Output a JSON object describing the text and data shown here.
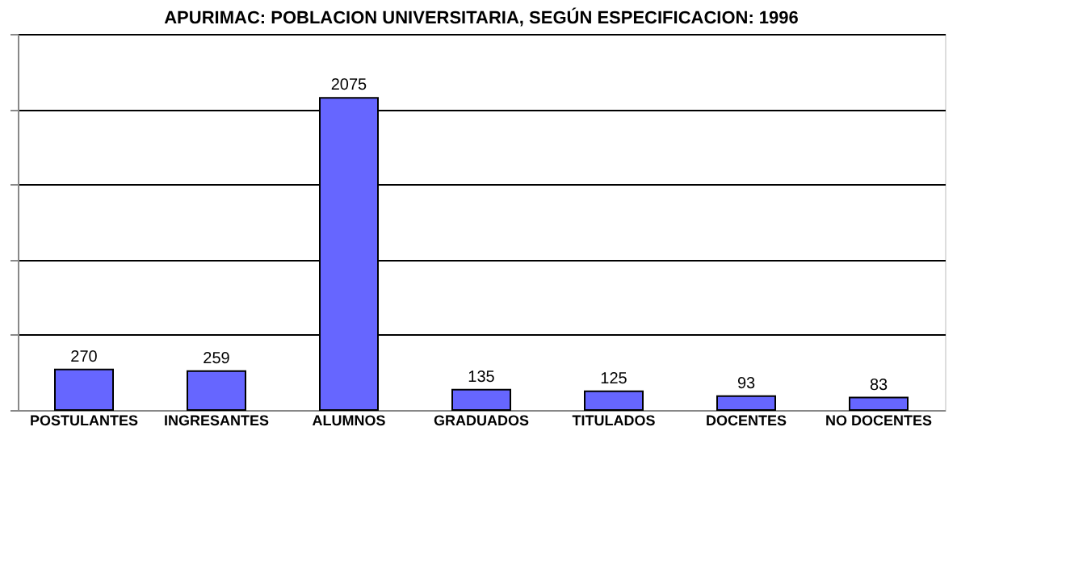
{
  "chart_data": {
    "type": "bar",
    "title": "APURIMAC: POBLACION UNIVERSITARIA, SEGÚN ESPECIFICACION: 1996",
    "categories": [
      "POSTULANTES",
      "INGRESANTES",
      "ALUMNOS",
      "GRADUADOS",
      "TITULADOS",
      "DOCENTES",
      "NO DOCENTES"
    ],
    "values": [
      270,
      259,
      2075,
      135,
      125,
      93,
      83
    ],
    "color": "#6666ff",
    "ylim": [
      0,
      2500
    ],
    "yticks": [
      {
        "value": 0,
        "label": null
      },
      {
        "value": 500,
        "label": null
      },
      {
        "value": 1000,
        "label": null
      },
      {
        "value": 1500,
        "label": null
      },
      {
        "value": 2000,
        "label": null
      },
      {
        "value": 2500,
        "label": null
      }
    ],
    "grid": "y",
    "data_labels": true,
    "tick_labels": "x"
  }
}
